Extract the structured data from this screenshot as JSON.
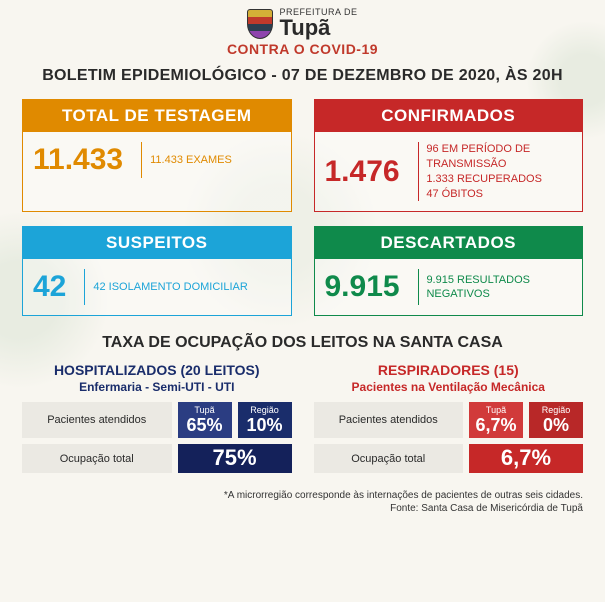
{
  "header": {
    "prefeitura": "PREFEITURA DE",
    "city": "Tupã",
    "slogan": "CONTRA O COVID-19"
  },
  "bulletin_title": "BOLETIM EPIDEMIOLÓGICO - 07 DE DEZEMBRO DE 2020, ÀS 20H",
  "cards": {
    "testagem": {
      "title": "TOTAL DE TESTAGEM",
      "value": "11.433",
      "detail": "11.433 EXAMES",
      "color": "#e08a00"
    },
    "confirmados": {
      "title": "CONFIRMADOS",
      "value": "1.476",
      "line1": "96 EM PERÍODO DE TRANSMISSÃO",
      "line2": "1.333 RECUPERADOS",
      "line3": "47  ÓBITOS",
      "color": "#c62828"
    },
    "suspeitos": {
      "title": "SUSPEITOS",
      "value": "42",
      "detail": "42 ISOLAMENTO DOMICILIAR",
      "color": "#1ca4d8"
    },
    "descartados": {
      "title": "DESCARTADOS",
      "value": "9.915",
      "detail": "9.915 RESULTADOS NEGATIVOS",
      "color": "#0f8a4b"
    }
  },
  "occupancy": {
    "title": "TAXA DE OCUPAÇÃO DOS LEITOS NA SANTA CASA",
    "hospitalizados": {
      "title": "HOSPITALIZADOS (20 LEITOS)",
      "subtitle": "Enfermaria - Semi-UTI - UTI",
      "row1_label": "Pacientes atendidos",
      "tupa_label": "Tupã",
      "tupa_value": "65%",
      "regiao_label": "Região",
      "regiao_value": "10%",
      "row2_label": "Ocupação total",
      "total_value": "75%",
      "color_primary": "#1a2d6b"
    },
    "respiradores": {
      "title": "RESPIRADORES (15)",
      "subtitle": "Pacientes na Ventilação Mecânica",
      "row1_label": "Pacientes atendidos",
      "tupa_label": "Tupã",
      "tupa_value": "6,7%",
      "regiao_label": "Região",
      "regiao_value": "0%",
      "row2_label": "Ocupação total",
      "total_value": "6,7%",
      "color_primary": "#c62828"
    }
  },
  "footer": {
    "note": "*A microrregião corresponde às internações de pacientes de outras seis cidades.",
    "source": "Fonte: Santa Casa de Misericórdia de Tupã"
  },
  "style": {
    "background_color": "#f8f6f0",
    "title_fontsize": 16,
    "card_title_fontsize": 17,
    "big_num_fontsize": 30,
    "detail_fontsize": 11
  }
}
